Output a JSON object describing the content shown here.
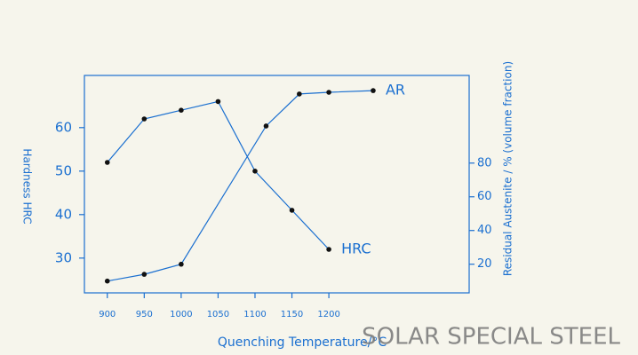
{
  "chart_data": {
    "type": "line",
    "x_label": "Quenching Temperature/°C",
    "y_label": "Hardness HRC",
    "y2_label": "Residual Austenite / % (volume fraction)",
    "watermark": "SOLAR SPECIAL STEEL",
    "xlim": [
      869,
      1390
    ],
    "xticks": [
      900,
      950,
      1000,
      1050,
      1100,
      1150,
      1200
    ],
    "ylim": [
      22,
      72
    ],
    "yticks": [
      30,
      40,
      50,
      60
    ],
    "y2lim": [
      3,
      132
    ],
    "y2ticks": [
      20,
      40,
      60,
      80
    ],
    "series": [
      {
        "name": "HRC",
        "color": "#1a6fd0",
        "x": [
          900,
          950,
          1000,
          1050,
          1100,
          1150,
          1200
        ],
        "values": [
          52,
          62,
          64,
          66,
          50,
          41,
          32
        ]
      },
      {
        "name": "AR",
        "color": "#1a6fd0",
        "axis": "y2",
        "x": [
          900,
          950,
          1000,
          1115,
          1160,
          1200,
          1260
        ],
        "values": [
          10,
          14,
          20,
          102,
          121,
          122,
          123
        ]
      }
    ]
  }
}
